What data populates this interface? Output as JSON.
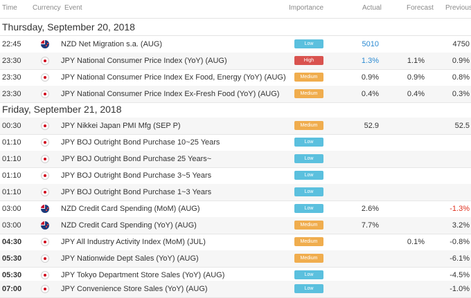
{
  "colors": {
    "low": "#5bc0de",
    "medium": "#f0ad4e",
    "high": "#d9534f",
    "link_blue": "#2a8ad2",
    "negative_red": "#e0301e"
  },
  "header": {
    "time": "Time",
    "currency": "Currency",
    "event": "Event",
    "importance": "Importance",
    "actual": "Actual",
    "forecast": "Forecast",
    "previous": "Previous"
  },
  "days": [
    {
      "title": "Thursday, September 20, 2018",
      "rows": [
        {
          "time": "22:45",
          "flag": "nz-flag-icon",
          "event": "NZD Net Migration s.a. (AUG)",
          "importance": "Low",
          "level": "low",
          "actual": "5010",
          "forecast": "",
          "previous": "4750"
        },
        {
          "time": "23:30",
          "flag": "jp-flag-icon",
          "event": "JPY National Consumer Price Index (YoY) (AUG)",
          "importance": "High",
          "level": "high",
          "actual": "1.3%",
          "forecast": "1.1%",
          "previous": "0.9%"
        },
        {
          "time": "23:30",
          "flag": "jp-flag-icon",
          "event": "JPY National Consumer Price Index Ex Food, Energy (YoY) (AUG)",
          "importance": "Medium",
          "level": "medium",
          "actual": "0.9%",
          "forecast": "0.9%",
          "previous": "0.8%"
        },
        {
          "time": "23:30",
          "flag": "jp-flag-icon",
          "event": "JPY National Consumer Price Index Ex-Fresh Food (YoY) (AUG)",
          "importance": "Medium",
          "level": "medium",
          "actual": "0.4%",
          "forecast": "0.4%",
          "previous": "0.3%"
        }
      ]
    },
    {
      "title": "Friday, September 21, 2018",
      "rows": [
        {
          "time": "00:30",
          "flag": "jp-flag-icon",
          "event": "JPY Nikkei Japan PMI Mfg (SEP P)",
          "importance": "Medium",
          "level": "medium",
          "actual": "52.9",
          "forecast": "",
          "previous": "52.5"
        },
        {
          "time": "01:10",
          "flag": "jp-flag-icon",
          "event": "JPY BOJ Outright Bond Purchase 10~25 Years",
          "importance": "Low",
          "level": "low",
          "actual": "",
          "forecast": "",
          "previous": ""
        },
        {
          "time": "01:10",
          "flag": "jp-flag-icon",
          "event": "JPY BOJ Outright Bond Purchase 25 Years~",
          "importance": "Low",
          "level": "low",
          "actual": "",
          "forecast": "",
          "previous": ""
        },
        {
          "time": "01:10",
          "flag": "jp-flag-icon",
          "event": "JPY BOJ Outright Bond Purchase 3~5 Years",
          "importance": "Low",
          "level": "low",
          "actual": "",
          "forecast": "",
          "previous": ""
        },
        {
          "time": "01:10",
          "flag": "jp-flag-icon",
          "event": "JPY BOJ Outright Bond Purchase 1~3 Years",
          "importance": "Low",
          "level": "low",
          "actual": "",
          "forecast": "",
          "previous": ""
        },
        {
          "time": "03:00",
          "flag": "nz-flag-icon",
          "event": "NZD Credit Card Spending (MoM) (AUG)",
          "importance": "Low",
          "level": "low",
          "actual": "2.6%",
          "forecast": "",
          "previous": "-1.3%"
        },
        {
          "time": "03:00",
          "flag": "nz-flag-icon",
          "event": "NZD Credit Card Spending (YoY) (AUG)",
          "importance": "Medium",
          "level": "medium",
          "actual": "7.7%",
          "forecast": "",
          "previous": "3.2%"
        },
        {
          "time": "04:30",
          "flag": "jp-flag-icon",
          "event": "JPY All Industry Activity Index (MoM) (JUL)",
          "importance": "Medium",
          "level": "medium",
          "actual": "",
          "forecast": "0.1%",
          "previous": "-0.8%"
        },
        {
          "time": "05:30",
          "flag": "jp-flag-icon",
          "event": "JPY Nationwide Dept Sales (YoY) (AUG)",
          "importance": "Medium",
          "level": "medium",
          "actual": "",
          "forecast": "",
          "previous": "-6.1%"
        },
        {
          "time": "05:30",
          "flag": "jp-flag-icon",
          "event": "JPY Tokyo Department Store Sales (YoY) (AUG)",
          "importance": "Low",
          "level": "low",
          "actual": "",
          "forecast": "",
          "previous": "-4.5%"
        },
        {
          "time": "07:00",
          "flag": "jp-flag-icon",
          "event": "JPY Convenience Store Sales (YoY) (AUG)",
          "importance": "Low",
          "level": "low",
          "actual": "",
          "forecast": "",
          "previous": "-1.0%"
        }
      ]
    }
  ]
}
